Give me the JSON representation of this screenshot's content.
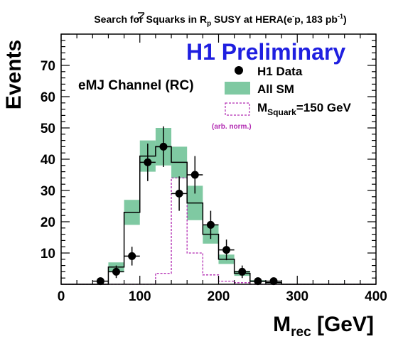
{
  "chart_data": {
    "type": "bar",
    "title": {
      "prefix": "Search for Squarks in R",
      "rp_sub": "p",
      "mid": " SUSY at HERA(e",
      "e_sup": "-",
      "tail": "p, 183 pb",
      "pb_sup": "-1",
      "close": ")"
    },
    "banner": "H1 Preliminary",
    "channel_label": "eMJ Channel (RC)",
    "ylabel": "Events",
    "xlabel": {
      "main": "M",
      "sub": "rec",
      "unit": " [GeV]"
    },
    "xlim": [
      0,
      400
    ],
    "ylim": [
      0,
      80
    ],
    "x_ticks": [
      {
        "value": 0,
        "label": "0"
      },
      {
        "value": 100,
        "label": "100"
      },
      {
        "value": 200,
        "label": "200"
      },
      {
        "value": 300,
        "label": "300"
      },
      {
        "value": 400,
        "label": "400"
      }
    ],
    "y_ticks": [
      {
        "value": 10,
        "label": "10"
      },
      {
        "value": 20,
        "label": "20"
      },
      {
        "value": 30,
        "label": "30"
      },
      {
        "value": 40,
        "label": "40"
      },
      {
        "value": 50,
        "label": "50"
      },
      {
        "value": 60,
        "label": "60"
      },
      {
        "value": 70,
        "label": "70"
      }
    ],
    "bin_edges": [
      0,
      20,
      40,
      60,
      80,
      100,
      120,
      140,
      160,
      180,
      200,
      220,
      240,
      260,
      280,
      300,
      320,
      340,
      360,
      380,
      400
    ],
    "series": [
      {
        "name": "H1 Data",
        "kind": "points",
        "points": [
          {
            "x": 50,
            "y": 1,
            "err": 1
          },
          {
            "x": 70,
            "y": 4,
            "err": 2
          },
          {
            "x": 90,
            "y": 9,
            "err": 3
          },
          {
            "x": 110,
            "y": 39,
            "err": 6
          },
          {
            "x": 130,
            "y": 44,
            "err": 6.5
          },
          {
            "x": 150,
            "y": 29,
            "err": 5.5
          },
          {
            "x": 170,
            "y": 35,
            "err": 6
          },
          {
            "x": 190,
            "y": 19,
            "err": 4.5
          },
          {
            "x": 210,
            "y": 11,
            "err": 3.3
          },
          {
            "x": 230,
            "y": 4,
            "err": 2
          },
          {
            "x": 250,
            "y": 1,
            "err": 1
          },
          {
            "x": 270,
            "y": 1,
            "err": 1
          }
        ]
      },
      {
        "name": "All SM",
        "kind": "histogram_band",
        "values": [
          0,
          0,
          0,
          5.5,
          23,
          41,
          44,
          39,
          26,
          16,
          8,
          3.5,
          1,
          0.5,
          0,
          0,
          0,
          0,
          0,
          0
        ],
        "band": [
          0,
          0,
          0,
          1.5,
          4,
          5,
          6,
          5,
          5.5,
          3,
          1.5,
          0.8,
          0.3,
          0.2,
          0,
          0,
          0,
          0,
          0,
          0
        ],
        "color": "#7fc9a2"
      },
      {
        "name": "M",
        "name_sub": "Squark",
        "name_tail": "=150 GeV",
        "kind": "signal_histogram",
        "values": [
          0,
          0,
          0,
          0,
          0,
          0,
          3.5,
          34,
          10,
          3,
          1,
          0.5,
          0,
          0,
          0,
          0,
          0,
          0,
          0,
          0
        ],
        "color": "#b22bb2"
      }
    ],
    "signal_note": "(arb. norm.)",
    "colors": {
      "banner": "#1f1fe0",
      "band": "#7fc9a2",
      "signal": "#b22bb2",
      "data": "#000000"
    },
    "legend_position": "top-right",
    "grid": false
  }
}
